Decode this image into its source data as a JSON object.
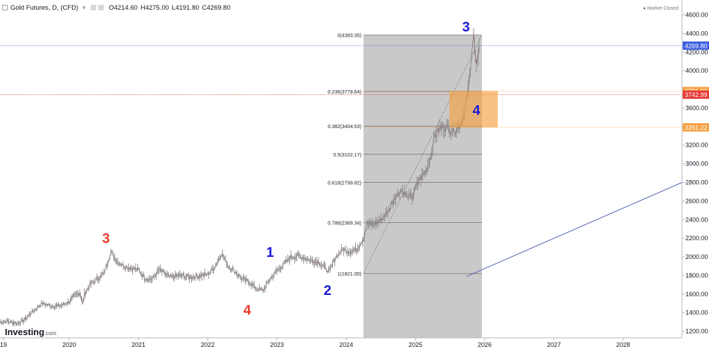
{
  "header": {
    "symbol": "Gold Futures, D, (CFD)",
    "open": "O4214.60",
    "high": "H4275.00",
    "low": "L4191.80",
    "close": "C4269.80",
    "status": "Market Closed"
  },
  "logo": {
    "brand": "Investing",
    "suffix": ".com"
  },
  "chart_data": {
    "type": "line",
    "title": "Gold Futures, D, (CFD)",
    "xlabel": "",
    "ylabel": "",
    "x_tick_labels": [
      "19",
      "2020",
      "2021",
      "2022",
      "2023",
      "2024",
      "2025",
      "2026",
      "2027",
      "2028"
    ],
    "y_tick_labels": [
      "1200.00",
      "1400.00",
      "1600.00",
      "1800.00",
      "2000.00",
      "2200.00",
      "2400.00",
      "2600.00",
      "2800.00",
      "3000.00",
      "3200.00",
      "3400.00",
      "3600.00",
      "3800.00",
      "4000.00",
      "4200.00",
      "4400.00",
      "4600.00"
    ],
    "ylim": [
      1130,
      4760
    ],
    "xlim": [
      2019.0,
      2028.85
    ],
    "grid": false,
    "series": [
      {
        "values_x": [
          2019.0,
          2019.1,
          2019.25,
          2019.35,
          2019.45,
          2019.52,
          2019.6,
          2019.7,
          2019.8,
          2019.9,
          2020.0,
          2020.08,
          2020.15,
          2020.2,
          2020.22,
          2020.3,
          2020.4,
          2020.5,
          2020.6,
          2020.7,
          2020.8,
          2020.9,
          2021.0,
          2021.1,
          2021.2,
          2021.3,
          2021.45,
          2021.6,
          2021.75,
          2021.9,
          2022.0,
          2022.1,
          2022.2,
          2022.3,
          2022.4,
          2022.5,
          2022.6,
          2022.7,
          2022.8,
          2022.9,
          2023.0,
          2023.1,
          2023.2,
          2023.3,
          2023.4,
          2023.5,
          2023.6,
          2023.7,
          2023.76,
          2023.85,
          2023.95,
          2024.05,
          2024.15,
          2024.25,
          2024.3,
          2024.4,
          2024.5,
          2024.6,
          2024.7,
          2024.8,
          2024.88,
          2024.95,
          2025.05,
          2025.15,
          2025.22,
          2025.28,
          2025.35,
          2025.45,
          2025.55,
          2025.62,
          2025.66,
          2025.72,
          2025.76,
          2025.78,
          2025.8,
          2025.84,
          2025.88,
          2025.92
        ],
        "values_y": [
          1300,
          1310,
          1285,
          1320,
          1400,
          1440,
          1500,
          1480,
          1470,
          1480,
          1520,
          1580,
          1620,
          1500,
          1600,
          1700,
          1760,
          1820,
          2050,
          1950,
          1900,
          1880,
          1860,
          1770,
          1760,
          1860,
          1780,
          1800,
          1780,
          1800,
          1810,
          1890,
          2040,
          1900,
          1840,
          1760,
          1730,
          1660,
          1640,
          1760,
          1850,
          1920,
          2000,
          2010,
          1990,
          1960,
          1950,
          1880,
          1840,
          2000,
          2080,
          2060,
          2080,
          2200,
          2350,
          2350,
          2400,
          2480,
          2640,
          2720,
          2650,
          2640,
          2820,
          2920,
          3080,
          3300,
          3380,
          3400,
          3350,
          3400,
          3450,
          3600,
          3780,
          3900,
          4100,
          4380,
          4000,
          4269.8
        ],
        "color": "#8c8c8c"
      }
    ],
    "fibonacci": [
      {
        "label": "0(4383.35)",
        "ratio": 0,
        "price": 4383.35
      },
      {
        "label": "0.236(3778.64)",
        "ratio": 0.236,
        "price": 3778.64
      },
      {
        "label": "0.382(3404.53)",
        "ratio": 0.382,
        "price": 3404.53
      },
      {
        "label": "0.5(3102.17)",
        "ratio": 0.5,
        "price": 3102.17
      },
      {
        "label": "0.618(2799.82)",
        "ratio": 0.618,
        "price": 2799.82
      },
      {
        "label": "0.786(2369.34)",
        "ratio": 0.786,
        "price": 2369.34
      },
      {
        "label": "1(1821.00)",
        "ratio": 1,
        "price": 1821.0
      }
    ],
    "fib_range_x": [
      2024.25,
      2025.96
    ],
    "price_tags": [
      {
        "text": "4269.80",
        "price": 4269.8,
        "color": "#3f5fe0"
      },
      {
        "text": "3781.82",
        "price": 3781.82,
        "color": "#f5a142"
      },
      {
        "text": "3742.99",
        "price": 3742.99,
        "color": "#e53935"
      },
      {
        "text": "3391.22",
        "price": 3391.22,
        "color": "#f5a142"
      }
    ],
    "target_zone": {
      "x": [
        2025.49,
        2026.19
      ],
      "price": [
        3391.22,
        3781.82
      ],
      "label": "4",
      "label_color": "#1a1ad6"
    },
    "trend_line": {
      "x": [
        2025.74,
        2028.85
      ],
      "price": [
        1790,
        2800
      ],
      "color": "#5463b0"
    },
    "wave_labels": [
      {
        "text": "3",
        "x": 2020.53,
        "price": 2150,
        "color": "#e8392c"
      },
      {
        "text": "4",
        "x": 2022.57,
        "price": 1380,
        "color": "#e8392c"
      },
      {
        "text": "1",
        "x": 2022.9,
        "price": 2000,
        "color": "#1a1ad6"
      },
      {
        "text": "2",
        "x": 2023.73,
        "price": 1590,
        "color": "#1a1ad6"
      },
      {
        "text": "3",
        "x": 2025.73,
        "price": 4420,
        "color": "#1a1ad6"
      }
    ]
  }
}
